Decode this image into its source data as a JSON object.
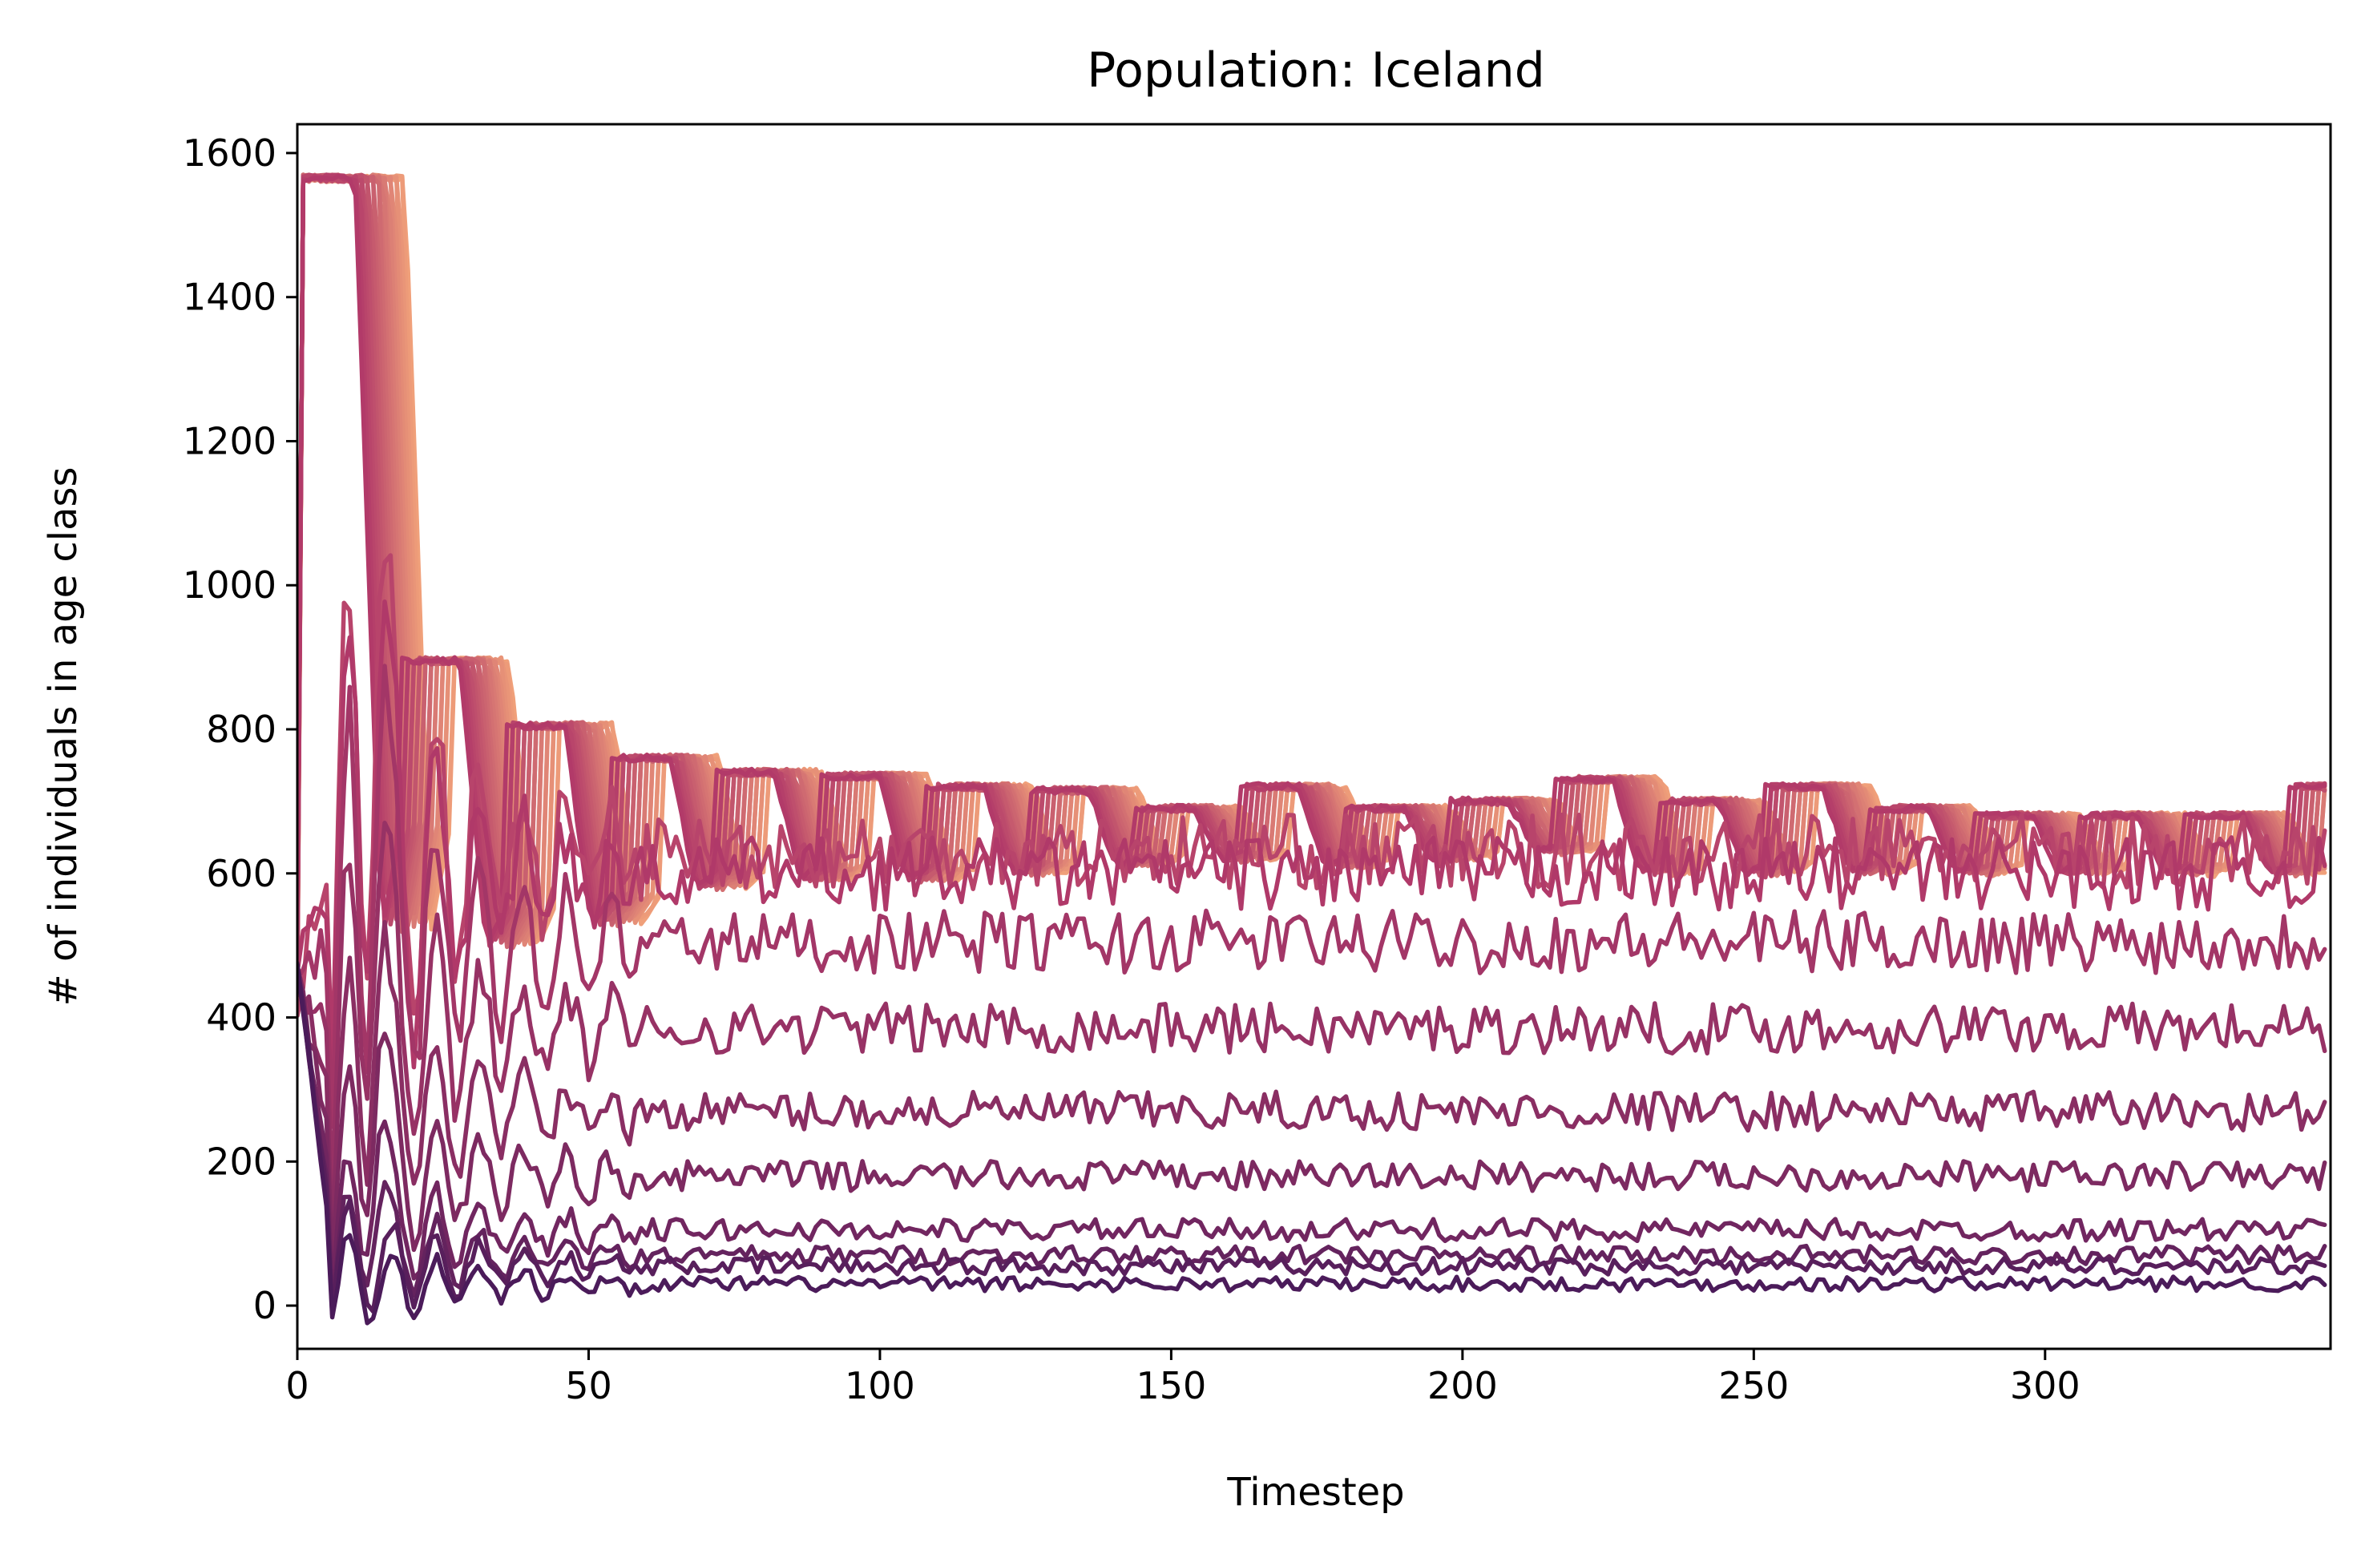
{
  "chart_data": {
    "type": "line",
    "title": "Population: Iceland",
    "xlabel": "Timestep",
    "ylabel": "# of individuals in age class",
    "xlim": [
      0,
      349
    ],
    "ylim": [
      -60,
      1640
    ],
    "xticks": [
      0,
      50,
      100,
      150,
      200,
      250,
      300
    ],
    "yticks": [
      0,
      200,
      400,
      600,
      800,
      1000,
      1200,
      1400,
      1600
    ],
    "grid": false,
    "legend": "none",
    "colormap": "flare",
    "colors": {
      "dark": "#4b1b5a",
      "mid": "#b23a69",
      "light": "#f0a07a"
    },
    "series_generation": {
      "description": "30 age-class series; mature classes plateau then drop in staircases, juvenile classes fluctuate at lower steady levels",
      "timesteps": 349,
      "num_series": 30,
      "steady_levels": [
        30,
        55,
        70,
        105,
        180,
        270,
        385,
        505,
        600,
        630
      ],
      "plateau_upper_levels": [
        1565,
        895,
        805,
        760,
        740,
        735,
        720,
        715,
        690,
        720,
        690,
        700,
        730,
        700,
        720,
        690,
        680,
        680,
        680,
        720,
        700,
        700,
        690,
        720
      ],
      "plateau_lower_levels": [
        520,
        500,
        530,
        580,
        590,
        590,
        600,
        610,
        620,
        610,
        620,
        630,
        600
      ],
      "plateau_cycle_period": 18
    }
  }
}
